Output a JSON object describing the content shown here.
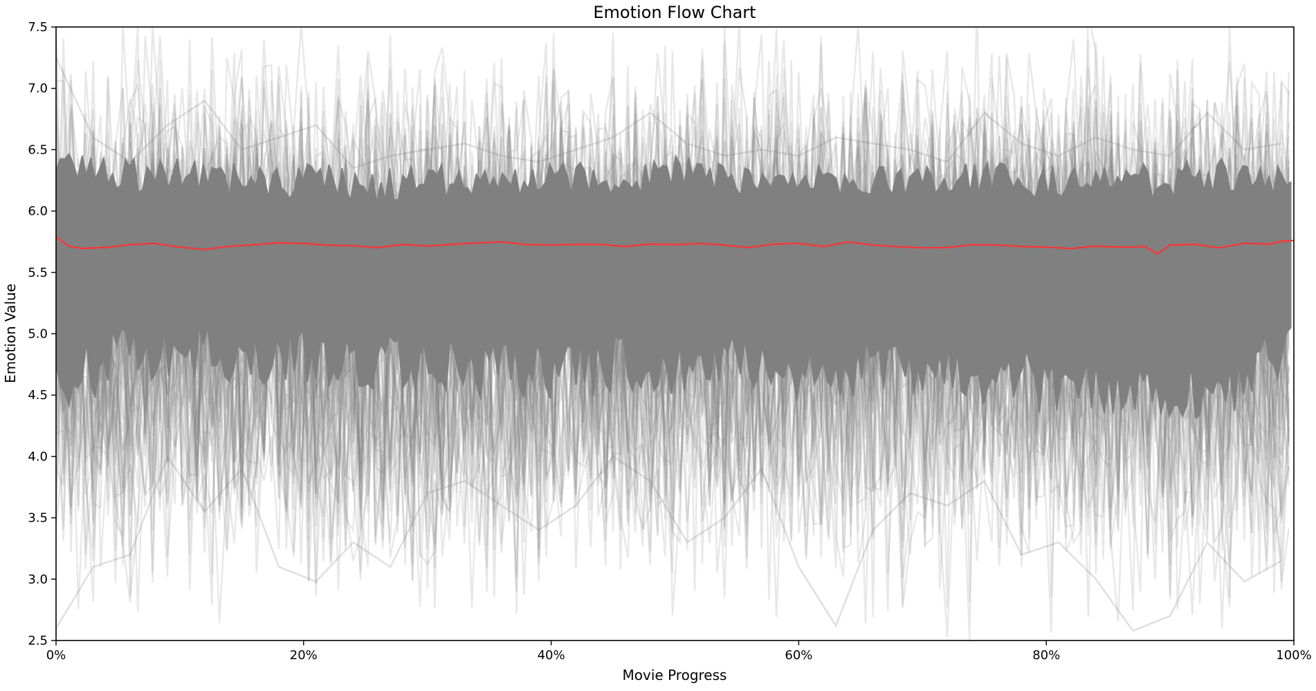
{
  "chart_data": {
    "type": "line",
    "title": "Emotion Flow Chart",
    "xlabel": "Movie Progress",
    "ylabel": "Emotion Value",
    "xlim": [
      0,
      100
    ],
    "ylim": [
      2.5,
      7.5
    ],
    "x_ticks": [
      0,
      20,
      40,
      60,
      80,
      100
    ],
    "x_tick_labels": [
      "0%",
      "20%",
      "40%",
      "60%",
      "80%",
      "100%"
    ],
    "y_ticks": [
      2.5,
      3.0,
      3.5,
      4.0,
      4.5,
      5.0,
      5.5,
      6.0,
      6.5,
      7.0,
      7.5
    ],
    "y_tick_labels": [
      "2.5",
      "3.0",
      "3.5",
      "4.0",
      "4.5",
      "5.0",
      "5.5",
      "6.0",
      "6.5",
      "7.0",
      "7.5"
    ],
    "grid": false,
    "legend": "none",
    "colors": {
      "band": "#808080",
      "mean": "#ff3333",
      "axes": "#000000"
    },
    "series": [
      {
        "role": "individual-movies",
        "color": "#808080",
        "dense_band": {
          "x": [
            0,
            5,
            10,
            15,
            20,
            25,
            30,
            35,
            40,
            45,
            50,
            55,
            60,
            65,
            70,
            75,
            80,
            85,
            90,
            95,
            100
          ],
          "low": [
            4.6,
            4.8,
            4.8,
            4.85,
            4.8,
            4.8,
            4.75,
            4.7,
            4.7,
            4.75,
            4.75,
            4.75,
            4.7,
            4.7,
            4.65,
            4.65,
            4.6,
            4.55,
            4.5,
            4.55,
            4.9
          ],
          "high": [
            6.35,
            6.3,
            6.3,
            6.25,
            6.25,
            6.2,
            6.25,
            6.25,
            6.25,
            6.25,
            6.3,
            6.25,
            6.25,
            6.25,
            6.25,
            6.25,
            6.25,
            6.25,
            6.25,
            6.3,
            6.25
          ]
        },
        "sample_lines": [
          {
            "x": [
              0,
              3,
              6,
              9,
              12,
              15,
              18,
              21,
              24,
              27,
              30,
              33,
              36,
              39,
              42,
              45,
              48,
              51,
              54,
              57,
              60,
              63,
              66,
              69,
              72,
              75,
              78,
              81,
              84,
              87,
              90,
              93,
              96,
              99
            ],
            "y": [
              7.25,
              6.6,
              6.4,
              6.7,
              6.9,
              6.5,
              6.6,
              6.7,
              6.35,
              6.45,
              6.5,
              6.55,
              6.45,
              6.4,
              6.5,
              6.6,
              6.8,
              6.55,
              6.45,
              6.5,
              6.45,
              6.6,
              6.55,
              6.5,
              6.4,
              6.8,
              6.55,
              6.45,
              6.6,
              6.5,
              6.45,
              6.8,
              6.5,
              6.55
            ]
          },
          {
            "x": [
              0,
              3,
              6,
              9,
              12,
              15,
              18,
              21,
              24,
              27,
              30,
              33,
              36,
              39,
              42,
              45,
              48,
              51,
              54,
              57,
              60,
              63,
              66,
              69,
              72,
              75,
              78,
              81,
              84,
              87,
              90,
              93,
              96,
              99
            ],
            "y": [
              2.6,
              3.1,
              3.2,
              4.0,
              3.55,
              3.9,
              3.1,
              2.98,
              3.3,
              3.1,
              3.7,
              3.8,
              3.6,
              3.4,
              3.6,
              4.0,
              3.8,
              3.3,
              3.5,
              3.9,
              3.1,
              2.62,
              3.4,
              3.7,
              3.6,
              3.8,
              3.2,
              3.3,
              3.0,
              2.58,
              2.7,
              3.3,
              2.98,
              3.15
            ]
          }
        ]
      },
      {
        "role": "mean",
        "color": "#ff3333",
        "x": [
          0,
          1,
          2,
          4,
          6,
          8,
          10,
          12,
          14,
          16,
          18,
          20,
          22,
          24,
          26,
          28,
          30,
          32,
          34,
          36,
          38,
          40,
          42,
          44,
          46,
          48,
          50,
          52,
          54,
          56,
          58,
          60,
          62,
          64,
          66,
          68,
          70,
          72,
          74,
          76,
          78,
          80,
          82,
          84,
          86,
          88,
          89,
          90,
          92,
          94,
          96,
          98,
          99,
          100
        ],
        "y": [
          5.79,
          5.72,
          5.7,
          5.71,
          5.72,
          5.73,
          5.71,
          5.68,
          5.72,
          5.72,
          5.74,
          5.73,
          5.72,
          5.71,
          5.7,
          5.72,
          5.72,
          5.73,
          5.74,
          5.74,
          5.73,
          5.72,
          5.72,
          5.73,
          5.72,
          5.74,
          5.72,
          5.73,
          5.72,
          5.71,
          5.74,
          5.73,
          5.72,
          5.74,
          5.73,
          5.71,
          5.7,
          5.71,
          5.72,
          5.72,
          5.71,
          5.71,
          5.7,
          5.72,
          5.71,
          5.71,
          5.66,
          5.72,
          5.72,
          5.71,
          5.73,
          5.72,
          5.76,
          5.76
        ]
      }
    ]
  }
}
